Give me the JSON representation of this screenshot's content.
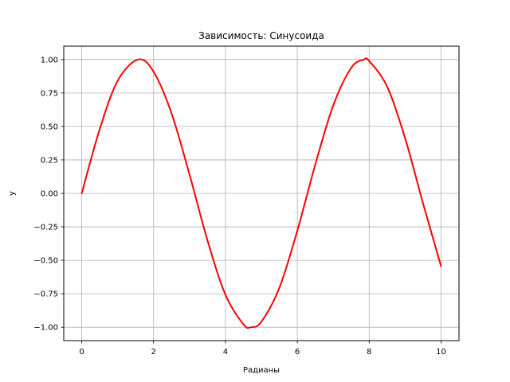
{
  "chart_data": {
    "type": "line",
    "title": "Зависимость: Синусоида",
    "xlabel": "Радианы",
    "ylabel": "y",
    "xlim": [
      -0.5,
      10.5
    ],
    "ylim": [
      -1.1,
      1.1
    ],
    "xticks": [
      0,
      2,
      4,
      6,
      8,
      10
    ],
    "xtick_labels": [
      "0",
      "2",
      "4",
      "6",
      "8",
      "10"
    ],
    "yticks": [
      -1.0,
      -0.75,
      -0.5,
      -0.25,
      0.0,
      0.25,
      0.5,
      0.75,
      1.0
    ],
    "ytick_labels": [
      "−1.00",
      "−0.75",
      "−0.50",
      "−0.25",
      "0.00",
      "0.25",
      "0.50",
      "0.75",
      "1.00"
    ],
    "grid": true,
    "series": [
      {
        "color": "#ff0000",
        "x": [
          0,
          0.5,
          1,
          1.5708,
          2,
          2.5,
          3,
          3.5,
          4,
          4.5,
          4.7124,
          5,
          5.5,
          6,
          6.5,
          7,
          7.5,
          7.854,
          8,
          8.5,
          9,
          9.5,
          10
        ],
        "y": [
          0,
          0.479,
          0.841,
          1.0,
          0.909,
          0.598,
          0.141,
          -0.351,
          -0.757,
          -0.978,
          -1.0,
          -0.959,
          -0.706,
          -0.279,
          0.215,
          0.657,
          0.938,
          1.0,
          0.989,
          0.798,
          0.412,
          -0.075,
          -0.544
        ]
      }
    ]
  }
}
